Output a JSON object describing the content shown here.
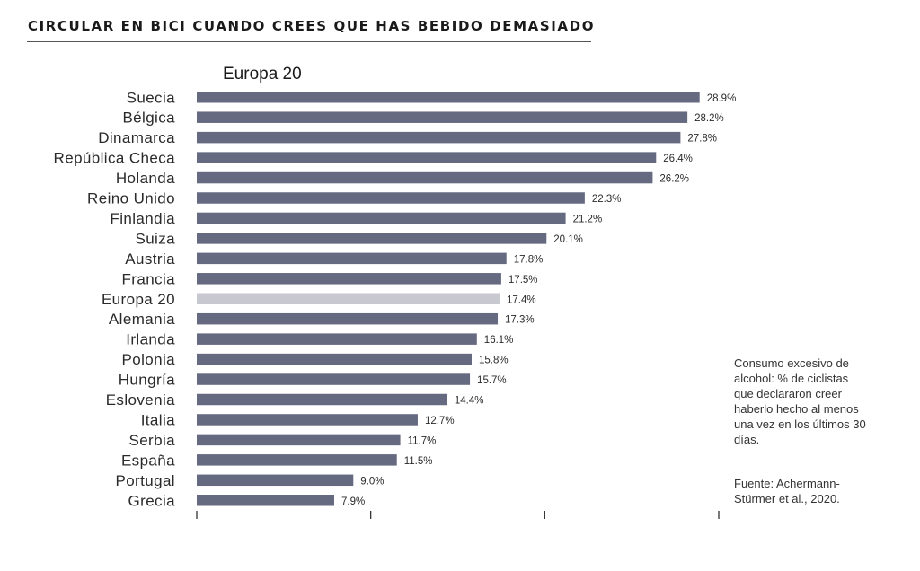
{
  "header": {
    "title": "CIRCULAR EN BICI CUANDO CREES QUE HAS BEBIDO DEMASIADO",
    "subtitle": "Europa 20"
  },
  "note": "Consumo excesivo de alcohol: % de ciclistas que declararon creer haberlo hecho al menos una vez en los últimos 30 días.",
  "source": "Fuente: Achermann-Stürmer et al., 2020.",
  "colors": {
    "bar": "#666a80",
    "highlight": "#c8c9d0",
    "axis": "#333333"
  },
  "chart_data": {
    "type": "bar",
    "orientation": "horizontal",
    "title": "CIRCULAR EN BICI CUANDO CREES QUE HAS BEBIDO DEMASIADO",
    "subtitle": "Europa 20",
    "categories": [
      "Suecia",
      "Bélgica",
      "Dinamarca",
      "República Checa",
      "Holanda",
      "Reino Unido",
      "Finlandia",
      "Suiza",
      "Austria",
      "Francia",
      "Europa 20",
      "Alemania",
      "Irlanda",
      "Polonia",
      "Hungría",
      "Eslovenia",
      "Italia",
      "Serbia",
      "España",
      "Portugal",
      "Grecia"
    ],
    "values": [
      28.9,
      28.2,
      27.8,
      26.4,
      26.2,
      22.3,
      21.2,
      20.1,
      17.8,
      17.5,
      17.4,
      17.3,
      16.1,
      15.8,
      15.7,
      14.4,
      12.7,
      11.7,
      11.5,
      9.0,
      7.9
    ],
    "value_labels": [
      "28.9%",
      "28.2%",
      "27.8%",
      "26.4%",
      "26.2%",
      "22.3%",
      "21.2%",
      "20.1%",
      "17.8%",
      "17.5%",
      "17.4%",
      "17.3%",
      "16.1%",
      "15.8%",
      "15.7%",
      "14.4%",
      "12.7%",
      "11.7%",
      "11.5%",
      "9.0%",
      "7.9%"
    ],
    "highlight": "Europa 20",
    "xlim": [
      0,
      30
    ],
    "axis_ticks": [
      0,
      10,
      20,
      30
    ],
    "grid": false
  }
}
